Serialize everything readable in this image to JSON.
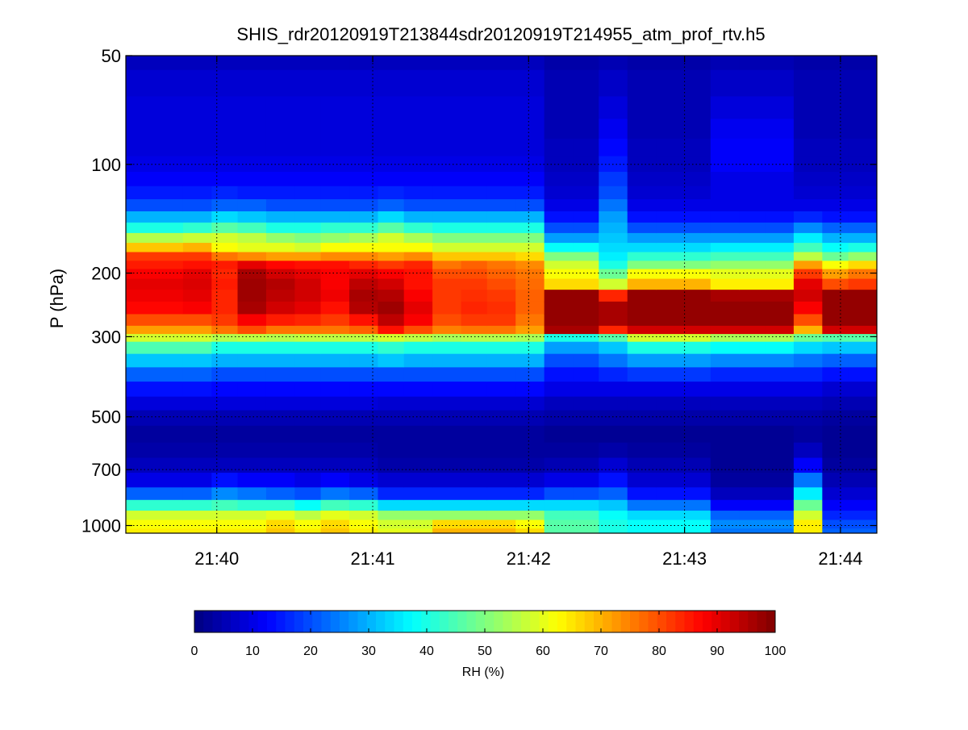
{
  "chart_data": {
    "type": "heatmap",
    "title": "SHIS_rdr20120919T213844sdr20120919T214955_atm_prof_rtv.h5",
    "xlabel": "",
    "ylabel": "P (hPa)",
    "x_scale": "time",
    "y_scale": "log",
    "xlim": [
      "21:39:25",
      "21:44:14"
    ],
    "ylim": [
      1050,
      50
    ],
    "x_ticks": [
      "21:40",
      "21:41",
      "21:42",
      "21:43",
      "21:44"
    ],
    "y_ticks": [
      50,
      100,
      200,
      300,
      500,
      700,
      1000
    ],
    "grid": true,
    "colormap": "jet",
    "colorbar": {
      "label": "RH (%)",
      "range": [
        0,
        100
      ],
      "ticks": [
        0,
        10,
        20,
        30,
        40,
        50,
        60,
        70,
        80,
        90,
        100
      ],
      "placement": "bottom"
    },
    "profile_times": [
      "21:39:25",
      "21:39:47",
      "21:39:58",
      "21:40:08",
      "21:40:19",
      "21:40:30",
      "21:40:40",
      "21:40:51",
      "21:41:02",
      "21:41:12",
      "21:41:23",
      "21:41:34",
      "21:41:44",
      "21:41:55",
      "21:42:06",
      "21:42:17",
      "21:42:27",
      "21:42:38",
      "21:42:49",
      "21:42:59",
      "21:43:10",
      "21:43:21",
      "21:43:31",
      "21:43:42",
      "21:43:53",
      "21:44:03",
      "21:44:14"
    ],
    "pressure_levels": [
      50,
      60,
      70,
      80,
      90,
      100,
      110,
      120,
      130,
      140,
      150,
      160,
      170,
      180,
      190,
      200,
      215,
      230,
      250,
      270,
      290,
      300,
      320,
      350,
      380,
      420,
      460,
      500,
      560,
      620,
      680,
      750,
      820,
      880,
      940,
      990,
      1050
    ],
    "rh_by_profile": [
      {
        "time": "21:39:25",
        "rh": [
          6,
          8,
          9,
          9,
          9,
          10,
          12,
          15,
          20,
          30,
          40,
          55,
          68,
          82,
          85,
          88,
          90,
          89,
          87,
          80,
          72,
          58,
          45,
          32,
          22,
          14,
          9,
          5,
          3,
          4,
          6,
          10,
          22,
          42,
          58,
          62,
          64
        ]
      },
      {
        "time": "21:39:47",
        "rh": [
          6,
          8,
          9,
          9,
          9,
          10,
          12,
          15,
          20,
          30,
          42,
          57,
          70,
          82,
          86,
          90,
          91,
          90,
          88,
          80,
          72,
          58,
          45,
          32,
          22,
          14,
          9,
          5,
          3,
          4,
          6,
          10,
          22,
          42,
          58,
          62,
          64
        ]
      },
      {
        "time": "21:39:58",
        "rh": [
          6,
          8,
          9,
          9,
          9,
          10,
          12,
          16,
          22,
          34,
          46,
          58,
          62,
          76,
          85,
          84,
          85,
          84,
          84,
          82,
          76,
          55,
          40,
          30,
          20,
          13,
          9,
          5,
          3,
          4,
          6,
          14,
          26,
          44,
          58,
          62,
          64
        ]
      },
      {
        "time": "21:40:08",
        "rh": [
          6,
          8,
          9,
          9,
          9,
          10,
          12,
          15,
          22,
          32,
          44,
          56,
          60,
          74,
          90,
          96,
          97,
          97,
          96,
          88,
          80,
          56,
          40,
          30,
          20,
          13,
          9,
          5,
          3,
          4,
          6,
          12,
          24,
          42,
          58,
          62,
          64
        ]
      },
      {
        "time": "21:40:19",
        "rh": [
          6,
          8,
          9,
          9,
          9,
          10,
          12,
          15,
          20,
          30,
          40,
          52,
          60,
          72,
          87,
          92,
          95,
          94,
          92,
          85,
          76,
          55,
          40,
          30,
          20,
          13,
          9,
          5,
          3,
          4,
          6,
          12,
          22,
          42,
          60,
          66,
          68
        ]
      },
      {
        "time": "21:40:30",
        "rh": [
          6,
          8,
          9,
          9,
          9,
          10,
          12,
          15,
          20,
          30,
          40,
          50,
          58,
          72,
          86,
          90,
          92,
          92,
          90,
          84,
          76,
          56,
          40,
          30,
          20,
          13,
          9,
          5,
          3,
          4,
          6,
          10,
          20,
          38,
          56,
          62,
          64
        ]
      },
      {
        "time": "21:40:40",
        "rh": [
          6,
          8,
          9,
          9,
          9,
          10,
          12,
          15,
          20,
          30,
          42,
          52,
          62,
          74,
          86,
          88,
          88,
          89,
          86,
          82,
          76,
          56,
          40,
          30,
          20,
          13,
          9,
          5,
          3,
          4,
          6,
          12,
          24,
          44,
          60,
          66,
          68
        ]
      },
      {
        "time": "21:40:51",
        "rh": [
          6,
          8,
          9,
          9,
          9,
          10,
          12,
          15,
          20,
          30,
          42,
          54,
          62,
          74,
          84,
          90,
          94,
          96,
          95,
          86,
          78,
          56,
          40,
          30,
          20,
          13,
          9,
          5,
          3,
          4,
          6,
          10,
          22,
          42,
          58,
          62,
          64
        ]
      },
      {
        "time": "21:41:02",
        "rh": [
          6,
          8,
          9,
          9,
          9,
          10,
          12,
          16,
          22,
          34,
          46,
          58,
          62,
          72,
          82,
          88,
          92,
          95,
          97,
          94,
          86,
          58,
          42,
          32,
          20,
          13,
          8,
          5,
          3,
          3,
          4,
          8,
          16,
          34,
          52,
          58,
          60
        ]
      },
      {
        "time": "21:41:12",
        "rh": [
          6,
          8,
          9,
          9,
          9,
          10,
          12,
          15,
          20,
          30,
          42,
          54,
          62,
          74,
          84,
          86,
          86,
          88,
          90,
          88,
          80,
          56,
          40,
          30,
          20,
          13,
          8,
          5,
          3,
          3,
          4,
          8,
          16,
          34,
          52,
          58,
          60
        ]
      },
      {
        "time": "21:41:23",
        "rh": [
          6,
          8,
          9,
          9,
          9,
          10,
          12,
          15,
          20,
          30,
          40,
          50,
          58,
          68,
          76,
          80,
          82,
          82,
          82,
          80,
          75,
          54,
          40,
          30,
          20,
          13,
          8,
          5,
          3,
          3,
          4,
          8,
          16,
          34,
          52,
          66,
          70
        ]
      },
      {
        "time": "21:41:34",
        "rh": [
          6,
          8,
          9,
          9,
          9,
          10,
          12,
          15,
          20,
          30,
          40,
          50,
          58,
          68,
          78,
          80,
          82,
          83,
          84,
          82,
          76,
          55,
          40,
          30,
          20,
          13,
          8,
          5,
          3,
          3,
          4,
          8,
          16,
          34,
          52,
          66,
          70
        ]
      },
      {
        "time": "21:41:44",
        "rh": [
          6,
          8,
          9,
          9,
          9,
          10,
          12,
          15,
          20,
          30,
          40,
          50,
          58,
          68,
          76,
          78,
          80,
          82,
          83,
          82,
          76,
          55,
          40,
          30,
          20,
          13,
          8,
          5,
          3,
          3,
          4,
          8,
          16,
          34,
          52,
          66,
          70
        ]
      },
      {
        "time": "21:41:55",
        "rh": [
          6,
          8,
          9,
          9,
          9,
          10,
          12,
          15,
          20,
          30,
          40,
          50,
          58,
          66,
          74,
          76,
          77,
          78,
          78,
          76,
          72,
          54,
          40,
          30,
          20,
          13,
          8,
          5,
          3,
          3,
          4,
          8,
          16,
          34,
          52,
          62,
          66
        ]
      },
      {
        "time": "21:42:06",
        "rh": [
          4,
          5,
          5,
          5,
          6,
          6,
          7,
          8,
          10,
          14,
          20,
          28,
          38,
          50,
          58,
          62,
          66,
          98,
          98,
          98,
          96,
          40,
          28,
          20,
          14,
          10,
          6,
          4,
          2,
          3,
          5,
          10,
          20,
          34,
          44,
          46,
          46
        ]
      },
      {
        "time": "21:42:17",
        "rh": [
          4,
          5,
          5,
          5,
          6,
          6,
          7,
          8,
          10,
          14,
          20,
          28,
          38,
          50,
          58,
          62,
          66,
          98,
          98,
          98,
          96,
          40,
          28,
          20,
          14,
          10,
          6,
          4,
          2,
          3,
          5,
          10,
          20,
          34,
          44,
          46,
          46
        ]
      },
      {
        "time": "21:42:27",
        "rh": [
          5,
          7,
          9,
          11,
          13,
          15,
          18,
          20,
          24,
          28,
          30,
          32,
          34,
          36,
          40,
          48,
          58,
          84,
          96,
          96,
          84,
          46,
          32,
          24,
          16,
          10,
          6,
          4,
          2,
          4,
          8,
          14,
          22,
          32,
          38,
          40,
          40
        ]
      },
      {
        "time": "21:42:38",
        "rh": [
          4,
          5,
          5,
          5,
          6,
          6,
          7,
          8,
          10,
          14,
          20,
          28,
          34,
          42,
          50,
          62,
          70,
          98,
          98,
          98,
          92,
          58,
          40,
          28,
          18,
          10,
          6,
          4,
          2,
          3,
          5,
          8,
          14,
          24,
          34,
          38,
          38
        ]
      },
      {
        "time": "21:42:49",
        "rh": [
          4,
          5,
          5,
          5,
          6,
          6,
          7,
          8,
          10,
          14,
          20,
          28,
          34,
          42,
          50,
          62,
          70,
          98,
          98,
          98,
          92,
          58,
          40,
          28,
          18,
          10,
          6,
          4,
          2,
          3,
          5,
          8,
          14,
          24,
          34,
          38,
          38
        ]
      },
      {
        "time": "21:42:59",
        "rh": [
          4,
          5,
          5,
          5,
          6,
          6,
          7,
          8,
          10,
          14,
          20,
          28,
          34,
          42,
          50,
          62,
          70,
          98,
          98,
          98,
          92,
          58,
          40,
          28,
          18,
          10,
          6,
          4,
          2,
          3,
          5,
          8,
          14,
          24,
          34,
          38,
          38
        ]
      },
      {
        "time": "21:43:10",
        "rh": [
          5,
          7,
          9,
          11,
          12,
          12,
          10,
          10,
          10,
          14,
          20,
          28,
          36,
          44,
          52,
          60,
          64,
          96,
          98,
          98,
          92,
          54,
          38,
          26,
          16,
          10,
          6,
          4,
          2,
          2,
          2,
          3,
          6,
          12,
          22,
          26,
          24
        ]
      },
      {
        "time": "21:43:21",
        "rh": [
          5,
          7,
          9,
          11,
          12,
          12,
          10,
          10,
          10,
          14,
          20,
          28,
          36,
          44,
          52,
          60,
          64,
          96,
          98,
          98,
          92,
          54,
          38,
          26,
          16,
          10,
          6,
          4,
          2,
          2,
          2,
          3,
          6,
          12,
          22,
          26,
          24
        ]
      },
      {
        "time": "21:43:31",
        "rh": [
          5,
          7,
          9,
          11,
          12,
          12,
          10,
          10,
          10,
          14,
          20,
          28,
          36,
          44,
          52,
          60,
          64,
          96,
          98,
          98,
          92,
          54,
          38,
          26,
          16,
          10,
          6,
          4,
          2,
          2,
          2,
          3,
          6,
          12,
          22,
          26,
          24
        ]
      },
      {
        "time": "21:43:42",
        "rh": [
          4,
          5,
          5,
          5,
          6,
          6,
          7,
          8,
          10,
          16,
          26,
          36,
          44,
          56,
          72,
          82,
          90,
          92,
          88,
          80,
          70,
          48,
          34,
          24,
          16,
          10,
          6,
          4,
          3,
          6,
          12,
          24,
          36,
          48,
          58,
          64,
          64
        ]
      },
      {
        "time": "21:43:53",
        "rh": [
          4,
          5,
          5,
          5,
          6,
          6,
          7,
          8,
          10,
          14,
          22,
          30,
          38,
          48,
          62,
          72,
          80,
          98,
          98,
          98,
          92,
          46,
          32,
          22,
          14,
          8,
          5,
          3,
          2,
          2,
          3,
          5,
          8,
          12,
          16,
          20,
          22
        ]
      },
      {
        "time": "21:44:03",
        "rh": [
          4,
          5,
          5,
          5,
          6,
          6,
          7,
          8,
          10,
          14,
          22,
          30,
          40,
          52,
          66,
          76,
          82,
          98,
          98,
          98,
          92,
          46,
          32,
          22,
          14,
          8,
          5,
          3,
          2,
          2,
          3,
          5,
          8,
          12,
          16,
          20,
          22
        ]
      },
      {
        "time": "21:44:14",
        "rh": [
          4,
          5,
          5,
          5,
          6,
          6,
          7,
          8,
          10,
          14,
          22,
          30,
          40,
          52,
          66,
          76,
          82,
          98,
          98,
          98,
          92,
          46,
          32,
          22,
          14,
          8,
          5,
          3,
          2,
          2,
          3,
          5,
          8,
          12,
          16,
          20,
          22
        ]
      }
    ]
  }
}
